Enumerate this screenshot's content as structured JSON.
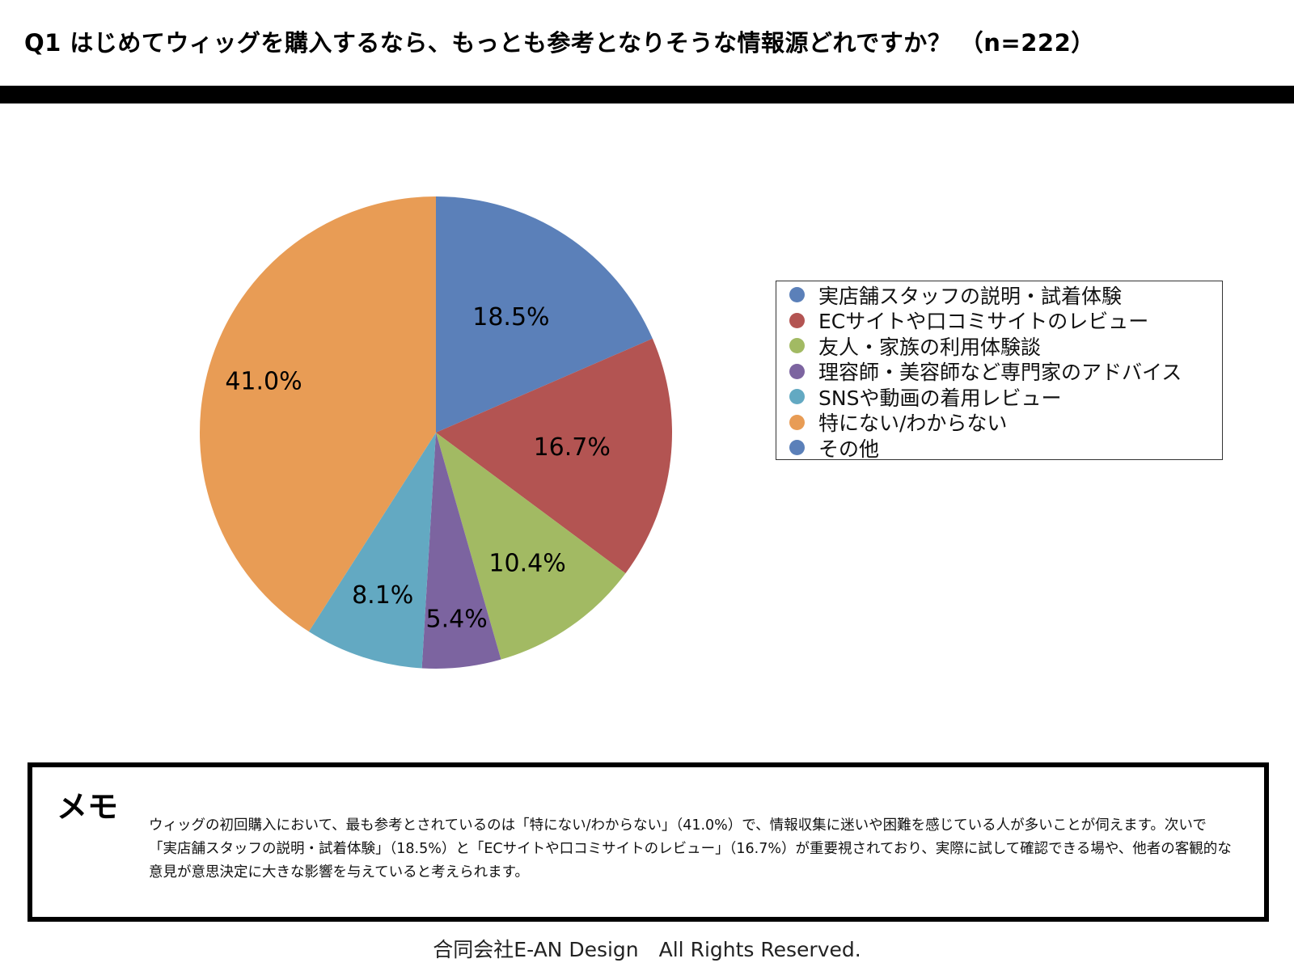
{
  "title": "Q1 はじめてウィッグを購入するなら、もっとも参考となりそうな情報源どれですか？ （n=222）",
  "chart_data": {
    "type": "pie",
    "categories": [
      "実店舗スタッフの説明・試着体験",
      "ECサイトや口コミサイトのレビュー",
      "友人・家族の利用体験談",
      "理容師・美容師など専門家のアドバイス",
      "SNSや動画の着用レビュー",
      "特にない/わからない",
      "その他"
    ],
    "values": [
      18.5,
      16.7,
      10.4,
      5.4,
      8.1,
      41.0,
      0.0
    ],
    "value_labels": [
      "18.5%",
      "16.7%",
      "10.4%",
      "5.4%",
      "8.1%",
      "41.0%",
      ""
    ],
    "colors": [
      "#5b80b9",
      "#b35452",
      "#a2ba63",
      "#7c64a0",
      "#63a9c2",
      "#e89c55",
      "#5b80b9"
    ],
    "legend_position": "right"
  },
  "memo": {
    "heading": "メモ",
    "text": "ウィッグの初回購入において、最も参考とされているのは「特にない/わからない」（41.0%）で、情報収集に迷いや困難を感じている人が多いことが伺えます。次いで「実店舗スタッフの説明・試着体験」（18.5%）と「ECサイトや口コミサイトのレビュー」（16.7%）が重要視されており、実際に試して確認できる場や、他者の客観的な意見が意思決定に大きな影響を与えていると考えられます。"
  },
  "footer": "合同会社E-AN Design　All Rights Reserved."
}
